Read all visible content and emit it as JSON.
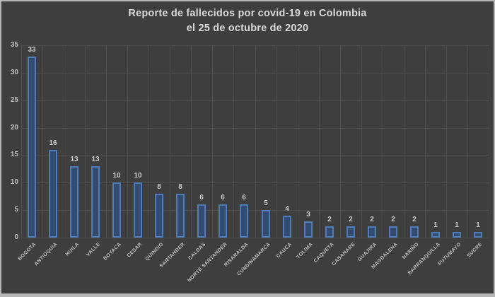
{
  "title": {
    "line1": "Reporte de fallecidos por covid-19 en Colombia",
    "line2": "el 25 de octubre de 2020"
  },
  "chart_data": {
    "type": "bar",
    "orientation": "vertical",
    "title": "Reporte de fallecidos por covid-19 en Colombia el 25 de octubre de 2020",
    "categories": [
      "BOGOTA",
      "ANTIOQUIA",
      "HUILA",
      "VALLE",
      "BOYACA",
      "CESAR",
      "QUINDIO",
      "SANTANDER",
      "CALDAS",
      "NORTE SANTANDER",
      "RISARALDA",
      "CUNDINAMARCA",
      "CAUCA",
      "TOLIMA",
      "CAQUETA",
      "CASANARE",
      "GUAJIRA",
      "MAGDALENA",
      "NARIÑO",
      "BARRANQUILLA",
      "PUTUMAYO",
      "SUCRE"
    ],
    "values": [
      33,
      16,
      13,
      13,
      10,
      10,
      8,
      8,
      6,
      6,
      6,
      5,
      4,
      3,
      2,
      2,
      2,
      2,
      2,
      1,
      1,
      1
    ],
    "xlabel": "",
    "ylabel": "",
    "ylim": [
      0,
      35
    ],
    "yticks": [
      0,
      5,
      10,
      15,
      20,
      25,
      30,
      35
    ],
    "ytick_step": 5,
    "grid": "horizontal-and-vertical",
    "legend": "none",
    "data_labels": true
  },
  "colors": {
    "background": "#3e3e3e",
    "frame_border": "#b6b6b6",
    "gridline": "#4d4d4d",
    "bar_fill": "#334b6e",
    "bar_border": "#4f7cb8",
    "title_text": "#d9d9d9",
    "axis_text": "#c0c0c0",
    "data_label_text": "#c9c9c9"
  }
}
